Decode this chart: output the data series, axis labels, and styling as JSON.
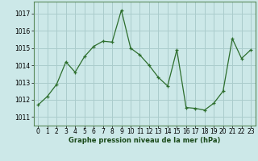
{
  "x": [
    0,
    1,
    2,
    3,
    4,
    5,
    6,
    7,
    8,
    9,
    10,
    11,
    12,
    13,
    14,
    15,
    16,
    17,
    18,
    19,
    20,
    21,
    22,
    23
  ],
  "y": [
    1011.7,
    1012.2,
    1012.9,
    1014.2,
    1013.6,
    1014.5,
    1015.1,
    1015.4,
    1015.35,
    1017.2,
    1015.0,
    1014.6,
    1014.0,
    1013.3,
    1012.8,
    1014.9,
    1011.55,
    1011.5,
    1011.4,
    1011.8,
    1012.5,
    1015.55,
    1014.4,
    1014.9
  ],
  "line_color": "#2d6e2d",
  "marker": "+",
  "bg_color": "#cce8e8",
  "grid_color": "#aacccc",
  "ylabel_ticks": [
    1011,
    1012,
    1013,
    1014,
    1015,
    1016,
    1017
  ],
  "xlabel": "Graphe pression niveau de la mer (hPa)",
  "ylim": [
    1010.5,
    1017.7
  ],
  "xlim": [
    -0.5,
    23.5
  ],
  "title_color": "#1a4a1a",
  "border_color": "#5a8a5a",
  "tick_fontsize": 5.5,
  "xlabel_fontsize": 6.0
}
